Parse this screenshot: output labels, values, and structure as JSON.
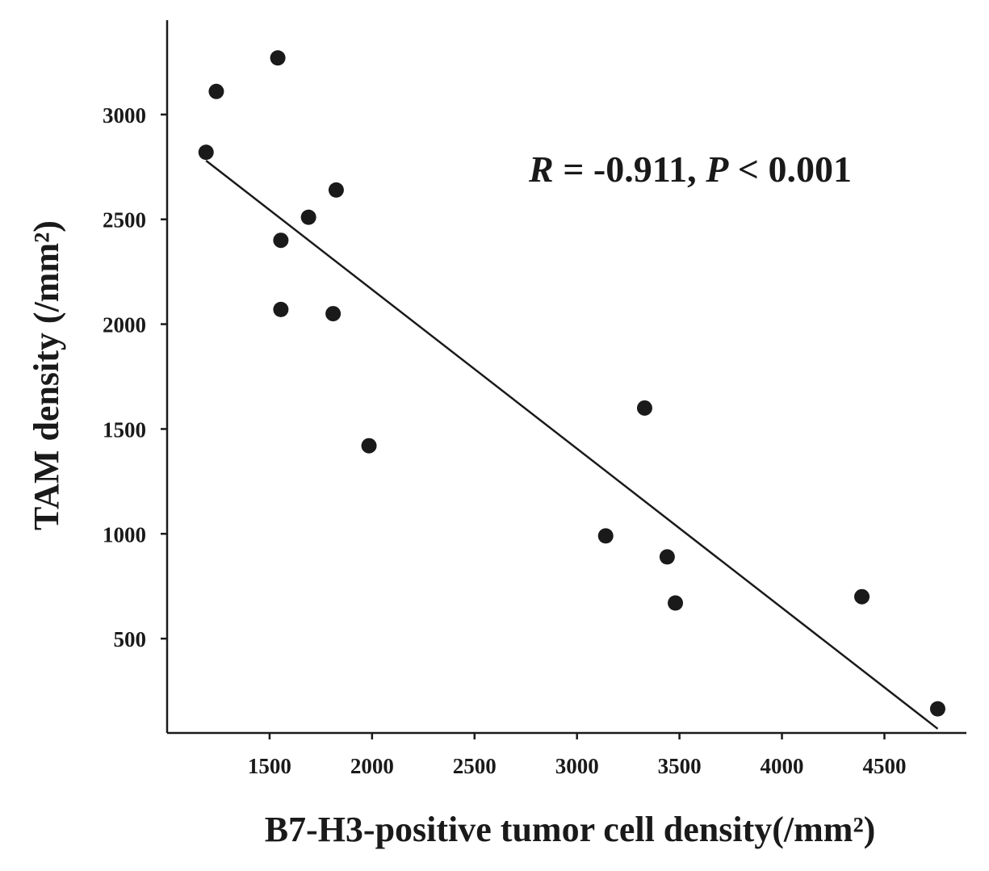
{
  "chart_data": {
    "type": "scatter",
    "title": "",
    "xlabel": "B7-H3-positive tumor cell density(/mm²)",
    "ylabel": "TAM density (/mm²)",
    "xlim": [
      1000,
      4900
    ],
    "ylim": [
      50,
      3450
    ],
    "xticks": [
      1500,
      2000,
      2500,
      3000,
      3500,
      4000,
      4500
    ],
    "yticks": [
      500,
      1000,
      1500,
      2000,
      2500,
      3000
    ],
    "points": [
      {
        "x": 1190,
        "y": 2820
      },
      {
        "x": 1240,
        "y": 3110
      },
      {
        "x": 1540,
        "y": 3270
      },
      {
        "x": 1555,
        "y": 2400
      },
      {
        "x": 1555,
        "y": 2070
      },
      {
        "x": 1690,
        "y": 2510
      },
      {
        "x": 1810,
        "y": 2050
      },
      {
        "x": 1825,
        "y": 2640
      },
      {
        "x": 1985,
        "y": 1420
      },
      {
        "x": 3140,
        "y": 990
      },
      {
        "x": 3330,
        "y": 1600
      },
      {
        "x": 3440,
        "y": 890
      },
      {
        "x": 3480,
        "y": 670
      },
      {
        "x": 4390,
        "y": 700
      },
      {
        "x": 4760,
        "y": 165
      }
    ],
    "regression_line": {
      "x_start": 1190,
      "y_start": 2780,
      "x_end": 4760,
      "y_end": 70
    },
    "annotation": {
      "r_label": "R",
      "r_text": " = -0.911, ",
      "p_label": "P",
      "p_text": " < 0.001"
    },
    "grid": false,
    "legend": "none"
  }
}
